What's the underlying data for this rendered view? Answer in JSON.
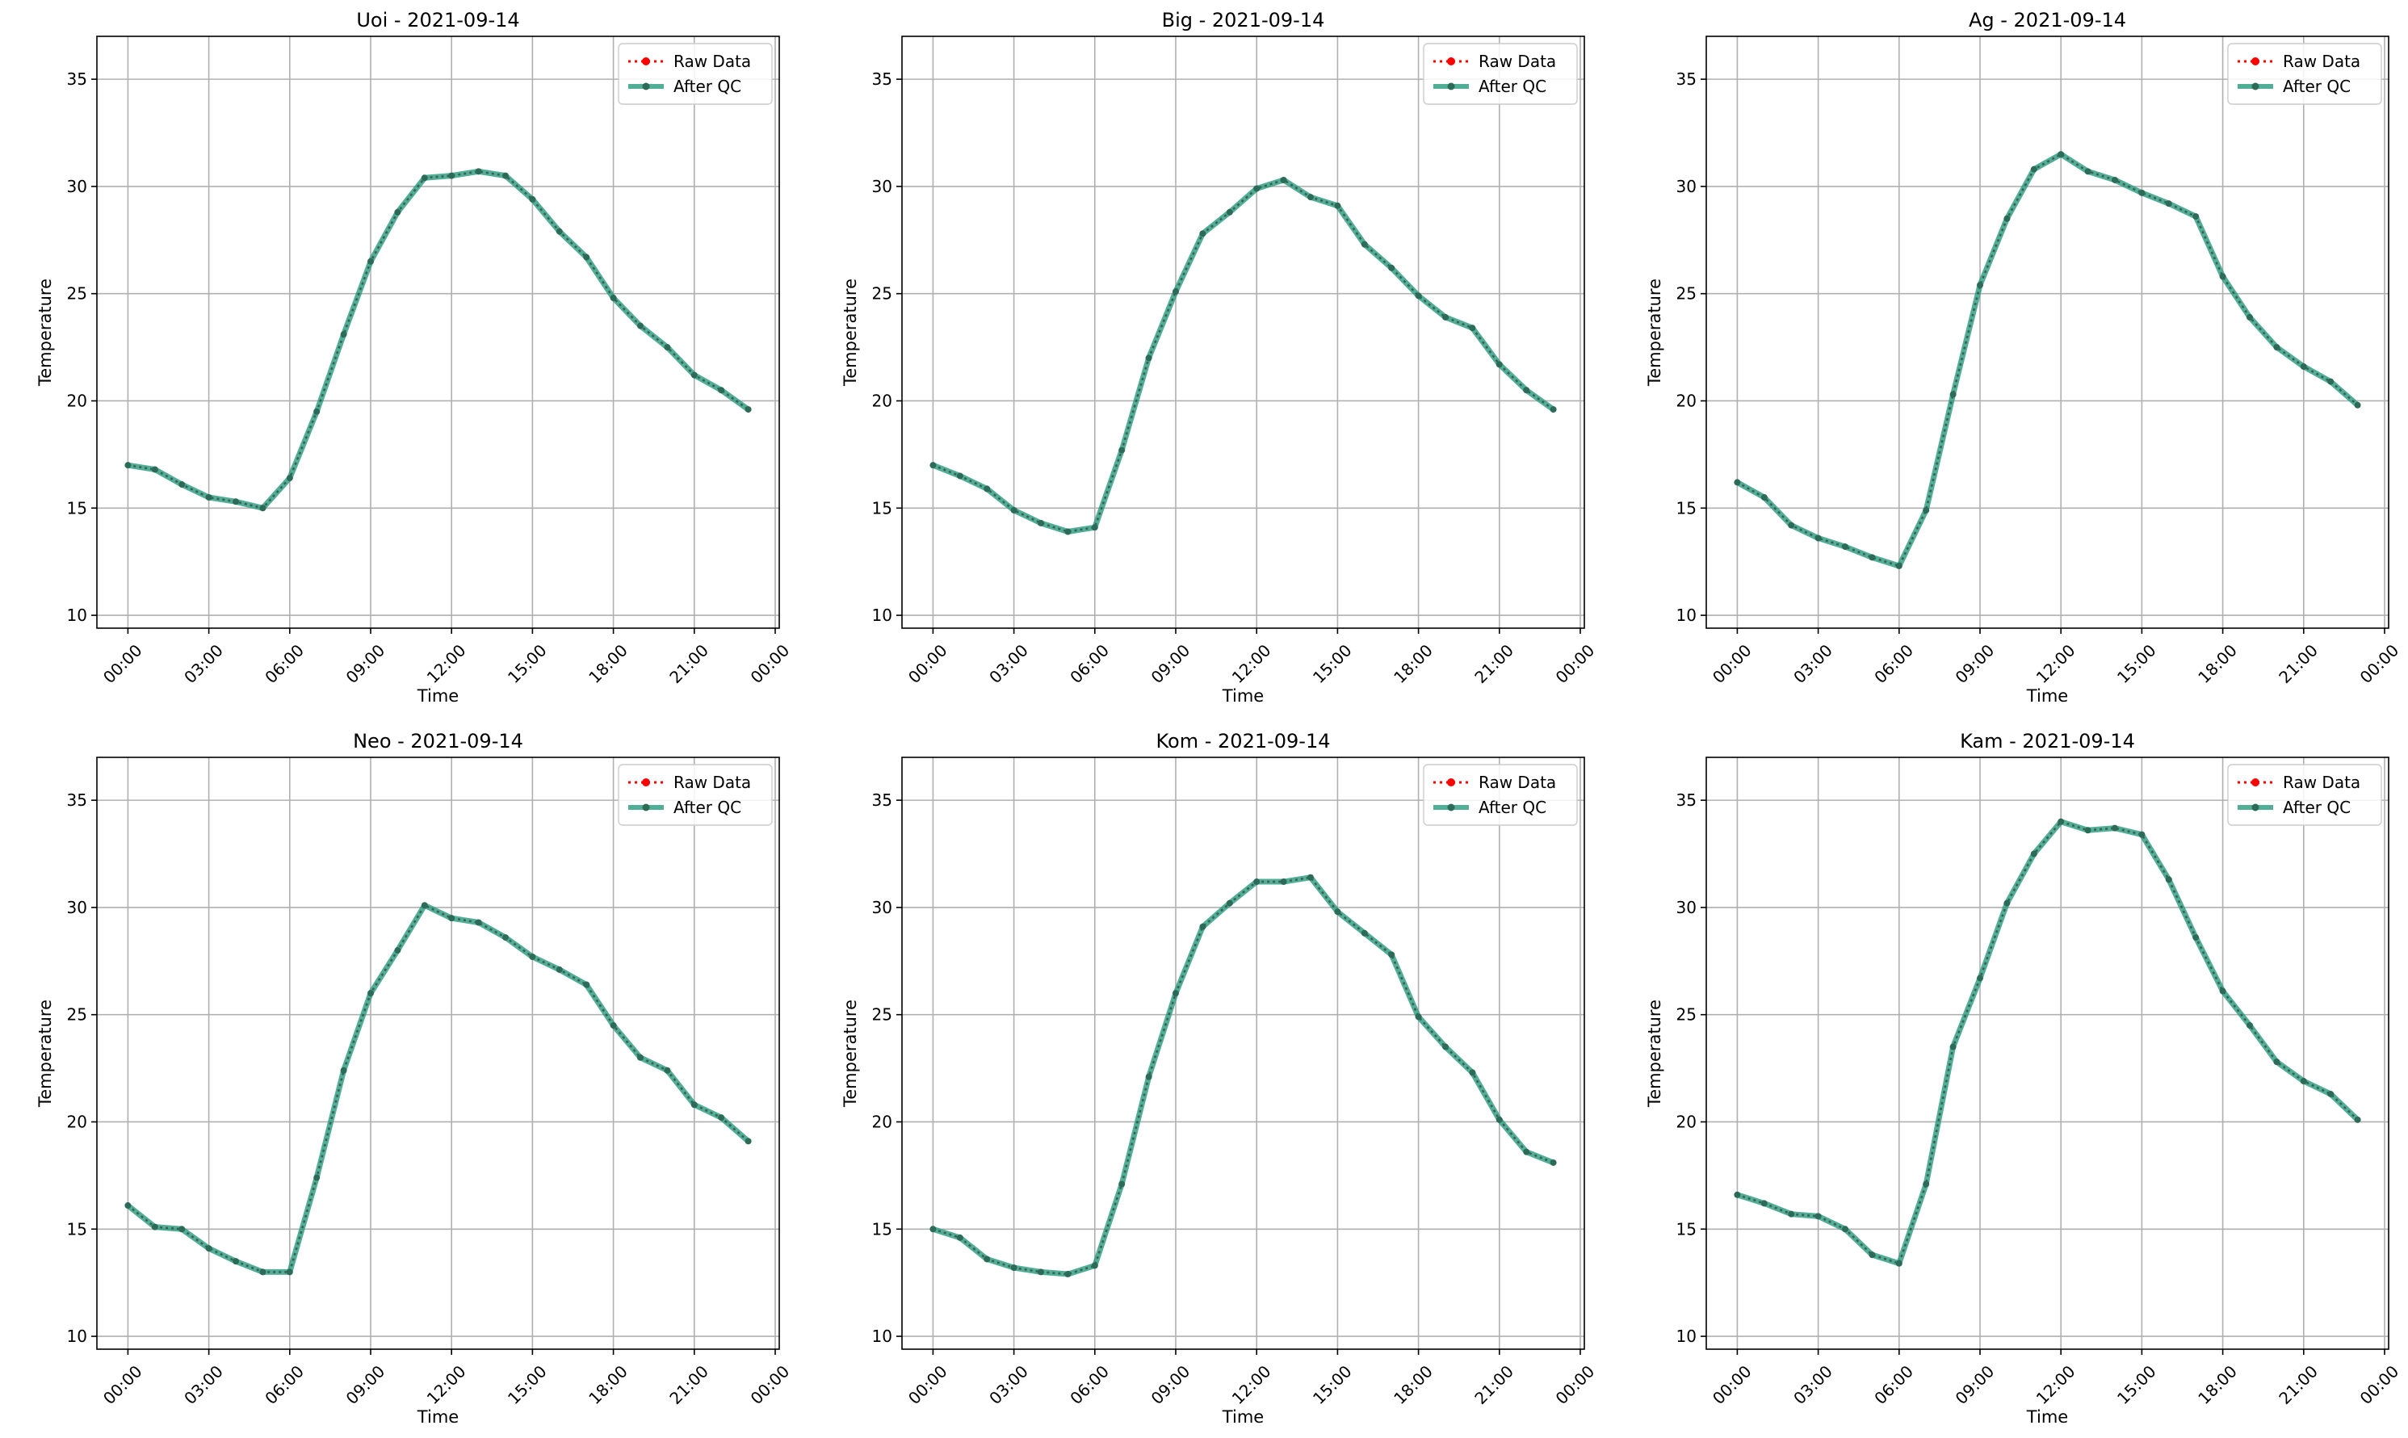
{
  "chart_data": [
    {
      "type": "line",
      "title": "Uoi - 2021-09-14",
      "xlabel": "Time",
      "ylabel": "Temperature",
      "x": [
        0,
        1,
        2,
        3,
        4,
        5,
        6,
        7,
        8,
        9,
        10,
        11,
        12,
        13,
        14,
        15,
        16,
        17,
        18,
        19,
        20,
        21,
        22,
        23
      ],
      "xlim": [
        0,
        24
      ],
      "ylim": [
        10,
        37
      ],
      "xticks": [
        "00:00",
        "03:00",
        "06:00",
        "09:00",
        "12:00",
        "15:00",
        "18:00",
        "21:00",
        "00:00"
      ],
      "yticks": [
        "10",
        "15",
        "20",
        "25",
        "30",
        "35"
      ],
      "grid": true,
      "legend": "top-right",
      "series": [
        {
          "name": "Raw Data",
          "color": "#ff0000",
          "values": [
            17.0,
            16.8,
            16.1,
            15.5,
            15.3,
            15.0,
            16.4,
            19.5,
            23.1,
            26.5,
            28.8,
            30.4,
            30.5,
            30.7,
            30.5,
            29.4,
            27.9,
            26.7,
            24.8,
            23.5,
            22.5,
            21.2,
            20.5,
            19.6
          ]
        },
        {
          "name": "After QC",
          "color": "#2a9d7f",
          "values": [
            17.0,
            16.8,
            16.1,
            15.5,
            15.3,
            15.0,
            16.4,
            19.5,
            23.1,
            26.5,
            28.8,
            30.4,
            30.5,
            30.7,
            30.5,
            29.4,
            27.9,
            26.7,
            24.8,
            23.5,
            22.5,
            21.2,
            20.5,
            19.6
          ]
        }
      ]
    },
    {
      "type": "line",
      "title": "Big - 2021-09-14",
      "xlabel": "Time",
      "ylabel": "Temperature",
      "x": [
        0,
        1,
        2,
        3,
        4,
        5,
        6,
        7,
        8,
        9,
        10,
        11,
        12,
        13,
        14,
        15,
        16,
        17,
        18,
        19,
        20,
        21,
        22,
        23
      ],
      "xlim": [
        0,
        24
      ],
      "ylim": [
        10,
        37
      ],
      "xticks": [
        "00:00",
        "03:00",
        "06:00",
        "09:00",
        "12:00",
        "15:00",
        "18:00",
        "21:00",
        "00:00"
      ],
      "yticks": [
        "10",
        "15",
        "20",
        "25",
        "30",
        "35"
      ],
      "grid": true,
      "legend": "top-right",
      "series": [
        {
          "name": "Raw Data",
          "color": "#ff0000",
          "values": [
            17.0,
            16.5,
            15.9,
            14.9,
            14.3,
            13.9,
            14.1,
            17.7,
            22.0,
            25.1,
            27.8,
            28.8,
            29.9,
            30.3,
            29.5,
            29.1,
            27.3,
            26.2,
            24.9,
            23.9,
            23.4,
            21.7,
            20.5,
            19.6
          ]
        },
        {
          "name": "After QC",
          "color": "#2a9d7f",
          "values": [
            17.0,
            16.5,
            15.9,
            14.9,
            14.3,
            13.9,
            14.1,
            17.7,
            22.0,
            25.1,
            27.8,
            28.8,
            29.9,
            30.3,
            29.5,
            29.1,
            27.3,
            26.2,
            24.9,
            23.9,
            23.4,
            21.7,
            20.5,
            19.6
          ]
        }
      ]
    },
    {
      "type": "line",
      "title": "Ag - 2021-09-14",
      "xlabel": "Time",
      "ylabel": "Temperature",
      "x": [
        0,
        1,
        2,
        3,
        4,
        5,
        6,
        7,
        8,
        9,
        10,
        11,
        12,
        13,
        14,
        15,
        16,
        17,
        18,
        19,
        20,
        21,
        22,
        23
      ],
      "xlim": [
        0,
        24
      ],
      "ylim": [
        10,
        37
      ],
      "xticks": [
        "00:00",
        "03:00",
        "06:00",
        "09:00",
        "12:00",
        "15:00",
        "18:00",
        "21:00",
        "00:00"
      ],
      "yticks": [
        "10",
        "15",
        "20",
        "25",
        "30",
        "35"
      ],
      "grid": true,
      "legend": "top-right",
      "series": [
        {
          "name": "Raw Data",
          "color": "#ff0000",
          "values": [
            16.2,
            15.5,
            14.2,
            13.6,
            13.2,
            12.7,
            12.3,
            14.9,
            20.3,
            25.4,
            28.5,
            30.8,
            31.5,
            30.7,
            30.3,
            29.7,
            29.2,
            28.6,
            25.8,
            23.9,
            22.5,
            21.6,
            20.9,
            19.8
          ]
        },
        {
          "name": "After QC",
          "color": "#2a9d7f",
          "values": [
            16.2,
            15.5,
            14.2,
            13.6,
            13.2,
            12.7,
            12.3,
            14.9,
            20.3,
            25.4,
            28.5,
            30.8,
            31.5,
            30.7,
            30.3,
            29.7,
            29.2,
            28.6,
            25.8,
            23.9,
            22.5,
            21.6,
            20.9,
            19.8
          ]
        }
      ]
    },
    {
      "type": "line",
      "title": "Neo - 2021-09-14",
      "xlabel": "Time",
      "ylabel": "Temperature",
      "x": [
        0,
        1,
        2,
        3,
        4,
        5,
        6,
        7,
        8,
        9,
        10,
        11,
        12,
        13,
        14,
        15,
        16,
        17,
        18,
        19,
        20,
        21,
        22,
        23
      ],
      "xlim": [
        0,
        24
      ],
      "ylim": [
        10,
        37
      ],
      "xticks": [
        "00:00",
        "03:00",
        "06:00",
        "09:00",
        "12:00",
        "15:00",
        "18:00",
        "21:00",
        "00:00"
      ],
      "yticks": [
        "10",
        "15",
        "20",
        "25",
        "30",
        "35"
      ],
      "grid": true,
      "legend": "top-right",
      "series": [
        {
          "name": "Raw Data",
          "color": "#ff0000",
          "values": [
            16.1,
            15.1,
            15.0,
            14.1,
            13.5,
            13.0,
            13.0,
            17.4,
            22.4,
            26.0,
            28.0,
            30.1,
            29.5,
            29.3,
            28.6,
            27.7,
            27.1,
            26.4,
            24.5,
            23.0,
            22.4,
            20.8,
            20.2,
            19.1
          ]
        },
        {
          "name": "After QC",
          "color": "#2a9d7f",
          "values": [
            16.1,
            15.1,
            15.0,
            14.1,
            13.5,
            13.0,
            13.0,
            17.4,
            22.4,
            26.0,
            28.0,
            30.1,
            29.5,
            29.3,
            28.6,
            27.7,
            27.1,
            26.4,
            24.5,
            23.0,
            22.4,
            20.8,
            20.2,
            19.1
          ]
        }
      ]
    },
    {
      "type": "line",
      "title": "Kom - 2021-09-14",
      "xlabel": "Time",
      "ylabel": "Temperature",
      "x": [
        0,
        1,
        2,
        3,
        4,
        5,
        6,
        7,
        8,
        9,
        10,
        11,
        12,
        13,
        14,
        15,
        16,
        17,
        18,
        19,
        20,
        21,
        22,
        23
      ],
      "xlim": [
        0,
        24
      ],
      "ylim": [
        10,
        37
      ],
      "xticks": [
        "00:00",
        "03:00",
        "06:00",
        "09:00",
        "12:00",
        "15:00",
        "18:00",
        "21:00",
        "00:00"
      ],
      "yticks": [
        "10",
        "15",
        "20",
        "25",
        "30",
        "35"
      ],
      "grid": true,
      "legend": "top-right",
      "series": [
        {
          "name": "Raw Data",
          "color": "#ff0000",
          "values": [
            15.0,
            14.6,
            13.6,
            13.2,
            13.0,
            12.9,
            13.3,
            17.1,
            22.1,
            26.0,
            29.1,
            30.2,
            31.2,
            31.2,
            31.4,
            29.8,
            28.8,
            27.8,
            24.9,
            23.5,
            22.3,
            20.1,
            18.6,
            18.1
          ]
        },
        {
          "name": "After QC",
          "color": "#2a9d7f",
          "values": [
            15.0,
            14.6,
            13.6,
            13.2,
            13.0,
            12.9,
            13.3,
            17.1,
            22.1,
            26.0,
            29.1,
            30.2,
            31.2,
            31.2,
            31.4,
            29.8,
            28.8,
            27.8,
            24.9,
            23.5,
            22.3,
            20.1,
            18.6,
            18.1
          ]
        }
      ]
    },
    {
      "type": "line",
      "title": "Kam - 2021-09-14",
      "xlabel": "Time",
      "ylabel": "Temperature",
      "x": [
        0,
        1,
        2,
        3,
        4,
        5,
        6,
        7,
        8,
        9,
        10,
        11,
        12,
        13,
        14,
        15,
        16,
        17,
        18,
        19,
        20,
        21,
        22,
        23
      ],
      "xlim": [
        0,
        24
      ],
      "ylim": [
        10,
        37
      ],
      "xticks": [
        "00:00",
        "03:00",
        "06:00",
        "09:00",
        "12:00",
        "15:00",
        "18:00",
        "21:00",
        "00:00"
      ],
      "yticks": [
        "10",
        "15",
        "20",
        "25",
        "30",
        "35"
      ],
      "grid": true,
      "legend": "top-right",
      "series": [
        {
          "name": "Raw Data",
          "color": "#ff0000",
          "values": [
            16.6,
            16.2,
            15.7,
            15.6,
            15.0,
            13.8,
            13.4,
            17.1,
            23.5,
            26.7,
            30.2,
            32.5,
            34.0,
            33.6,
            33.7,
            33.4,
            31.3,
            28.6,
            26.1,
            24.5,
            22.8,
            21.9,
            21.3,
            20.1
          ]
        },
        {
          "name": "After QC",
          "color": "#2a9d7f",
          "values": [
            16.6,
            16.2,
            15.7,
            15.6,
            15.0,
            13.8,
            13.4,
            17.1,
            23.5,
            26.7,
            30.2,
            32.5,
            34.0,
            33.6,
            33.7,
            33.4,
            31.3,
            28.6,
            26.1,
            24.5,
            22.8,
            21.9,
            21.3,
            20.1
          ]
        }
      ]
    }
  ]
}
